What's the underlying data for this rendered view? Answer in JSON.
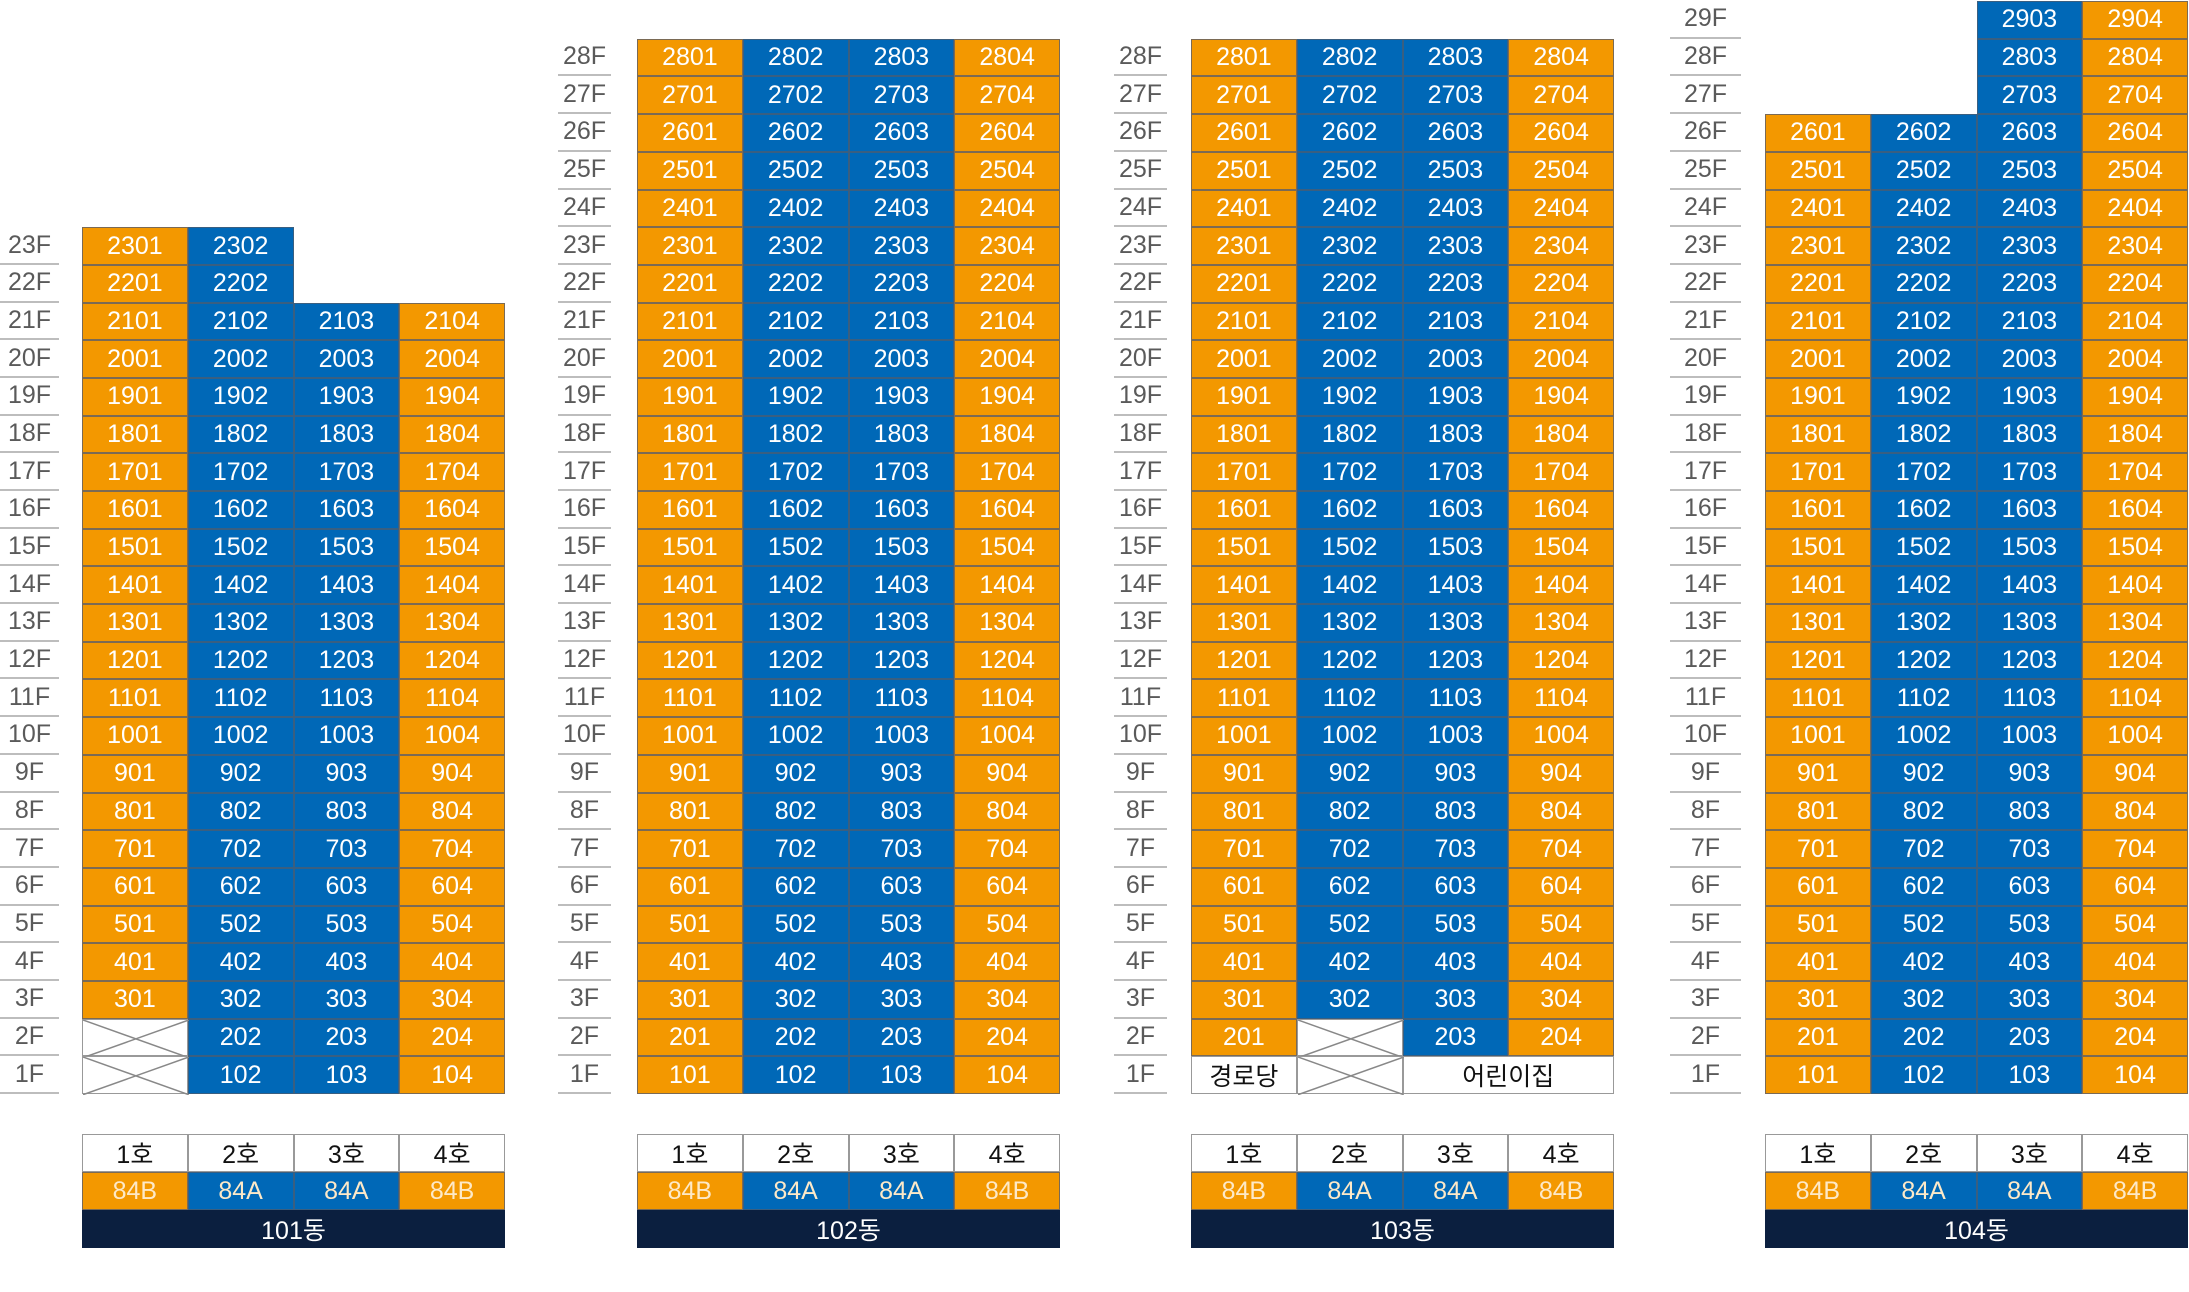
{
  "colors": {
    "orange": "#f39800",
    "blue": "#0068b7",
    "navy": "#0b1f3f"
  },
  "column_types": [
    "o",
    "b",
    "b",
    "o"
  ],
  "legend_units": [
    "1호",
    "2호",
    "3호",
    "4호"
  ],
  "legend_types": [
    "84B",
    "84A",
    "84A",
    "84B"
  ],
  "buildings": [
    {
      "name": "101동",
      "floors": [
        {
          "label": "23F",
          "units": [
            "2301",
            "2302",
            null,
            null
          ]
        },
        {
          "label": "22F",
          "units": [
            "2201",
            "2202",
            null,
            null
          ]
        },
        {
          "label": "21F",
          "units": [
            "2101",
            "2102",
            "2103",
            "2104"
          ]
        },
        {
          "label": "20F",
          "units": [
            "2001",
            "2002",
            "2003",
            "2004"
          ]
        },
        {
          "label": "19F",
          "units": [
            "1901",
            "1902",
            "1903",
            "1904"
          ]
        },
        {
          "label": "18F",
          "units": [
            "1801",
            "1802",
            "1803",
            "1804"
          ]
        },
        {
          "label": "17F",
          "units": [
            "1701",
            "1702",
            "1703",
            "1704"
          ]
        },
        {
          "label": "16F",
          "units": [
            "1601",
            "1602",
            "1603",
            "1604"
          ]
        },
        {
          "label": "15F",
          "units": [
            "1501",
            "1502",
            "1503",
            "1504"
          ]
        },
        {
          "label": "14F",
          "units": [
            "1401",
            "1402",
            "1403",
            "1404"
          ]
        },
        {
          "label": "13F",
          "units": [
            "1301",
            "1302",
            "1303",
            "1304"
          ]
        },
        {
          "label": "12F",
          "units": [
            "1201",
            "1202",
            "1203",
            "1204"
          ]
        },
        {
          "label": "11F",
          "units": [
            "1101",
            "1102",
            "1103",
            "1104"
          ]
        },
        {
          "label": "10F",
          "units": [
            "1001",
            "1002",
            "1003",
            "1004"
          ]
        },
        {
          "label": "9F",
          "units": [
            "901",
            "902",
            "903",
            "904"
          ]
        },
        {
          "label": "8F",
          "units": [
            "801",
            "802",
            "803",
            "804"
          ]
        },
        {
          "label": "7F",
          "units": [
            "701",
            "702",
            "703",
            "704"
          ]
        },
        {
          "label": "6F",
          "units": [
            "601",
            "602",
            "603",
            "604"
          ]
        },
        {
          "label": "5F",
          "units": [
            "501",
            "502",
            "503",
            "504"
          ]
        },
        {
          "label": "4F",
          "units": [
            "401",
            "402",
            "403",
            "404"
          ]
        },
        {
          "label": "3F",
          "units": [
            "301",
            "302",
            "303",
            "304"
          ]
        },
        {
          "label": "2F",
          "units": [
            "X",
            "202",
            "203",
            "204"
          ]
        },
        {
          "label": "1F",
          "units": [
            "X",
            "102",
            "103",
            "104"
          ]
        }
      ]
    },
    {
      "name": "102동",
      "floors": [
        {
          "label": "28F",
          "units": [
            "2801",
            "2802",
            "2803",
            "2804"
          ]
        },
        {
          "label": "27F",
          "units": [
            "2701",
            "2702",
            "2703",
            "2704"
          ]
        },
        {
          "label": "26F",
          "units": [
            "2601",
            "2602",
            "2603",
            "2604"
          ]
        },
        {
          "label": "25F",
          "units": [
            "2501",
            "2502",
            "2503",
            "2504"
          ]
        },
        {
          "label": "24F",
          "units": [
            "2401",
            "2402",
            "2403",
            "2404"
          ]
        },
        {
          "label": "23F",
          "units": [
            "2301",
            "2302",
            "2303",
            "2304"
          ]
        },
        {
          "label": "22F",
          "units": [
            "2201",
            "2202",
            "2203",
            "2204"
          ]
        },
        {
          "label": "21F",
          "units": [
            "2101",
            "2102",
            "2103",
            "2104"
          ]
        },
        {
          "label": "20F",
          "units": [
            "2001",
            "2002",
            "2003",
            "2004"
          ]
        },
        {
          "label": "19F",
          "units": [
            "1901",
            "1902",
            "1903",
            "1904"
          ]
        },
        {
          "label": "18F",
          "units": [
            "1801",
            "1802",
            "1803",
            "1804"
          ]
        },
        {
          "label": "17F",
          "units": [
            "1701",
            "1702",
            "1703",
            "1704"
          ]
        },
        {
          "label": "16F",
          "units": [
            "1601",
            "1602",
            "1603",
            "1604"
          ]
        },
        {
          "label": "15F",
          "units": [
            "1501",
            "1502",
            "1503",
            "1504"
          ]
        },
        {
          "label": "14F",
          "units": [
            "1401",
            "1402",
            "1403",
            "1404"
          ]
        },
        {
          "label": "13F",
          "units": [
            "1301",
            "1302",
            "1303",
            "1304"
          ]
        },
        {
          "label": "12F",
          "units": [
            "1201",
            "1202",
            "1203",
            "1204"
          ]
        },
        {
          "label": "11F",
          "units": [
            "1101",
            "1102",
            "1103",
            "1104"
          ]
        },
        {
          "label": "10F",
          "units": [
            "1001",
            "1002",
            "1003",
            "1004"
          ]
        },
        {
          "label": "9F",
          "units": [
            "901",
            "902",
            "903",
            "904"
          ]
        },
        {
          "label": "8F",
          "units": [
            "801",
            "802",
            "803",
            "804"
          ]
        },
        {
          "label": "7F",
          "units": [
            "701",
            "702",
            "703",
            "704"
          ]
        },
        {
          "label": "6F",
          "units": [
            "601",
            "602",
            "603",
            "604"
          ]
        },
        {
          "label": "5F",
          "units": [
            "501",
            "502",
            "503",
            "504"
          ]
        },
        {
          "label": "4F",
          "units": [
            "401",
            "402",
            "403",
            "404"
          ]
        },
        {
          "label": "3F",
          "units": [
            "301",
            "302",
            "303",
            "304"
          ]
        },
        {
          "label": "2F",
          "units": [
            "201",
            "202",
            "203",
            "204"
          ]
        },
        {
          "label": "1F",
          "units": [
            "101",
            "102",
            "103",
            "104"
          ]
        }
      ]
    },
    {
      "name": "103동",
      "floors": [
        {
          "label": "28F",
          "units": [
            "2801",
            "2802",
            "2803",
            "2804"
          ]
        },
        {
          "label": "27F",
          "units": [
            "2701",
            "2702",
            "2703",
            "2704"
          ]
        },
        {
          "label": "26F",
          "units": [
            "2601",
            "2602",
            "2603",
            "2604"
          ]
        },
        {
          "label": "25F",
          "units": [
            "2501",
            "2502",
            "2503",
            "2504"
          ]
        },
        {
          "label": "24F",
          "units": [
            "2401",
            "2402",
            "2403",
            "2404"
          ]
        },
        {
          "label": "23F",
          "units": [
            "2301",
            "2302",
            "2303",
            "2304"
          ]
        },
        {
          "label": "22F",
          "units": [
            "2201",
            "2202",
            "2203",
            "2204"
          ]
        },
        {
          "label": "21F",
          "units": [
            "2101",
            "2102",
            "2103",
            "2104"
          ]
        },
        {
          "label": "20F",
          "units": [
            "2001",
            "2002",
            "2003",
            "2004"
          ]
        },
        {
          "label": "19F",
          "units": [
            "1901",
            "1902",
            "1903",
            "1904"
          ]
        },
        {
          "label": "18F",
          "units": [
            "1801",
            "1802",
            "1803",
            "1804"
          ]
        },
        {
          "label": "17F",
          "units": [
            "1701",
            "1702",
            "1703",
            "1704"
          ]
        },
        {
          "label": "16F",
          "units": [
            "1601",
            "1602",
            "1603",
            "1604"
          ]
        },
        {
          "label": "15F",
          "units": [
            "1501",
            "1502",
            "1503",
            "1504"
          ]
        },
        {
          "label": "14F",
          "units": [
            "1401",
            "1402",
            "1403",
            "1404"
          ]
        },
        {
          "label": "13F",
          "units": [
            "1301",
            "1302",
            "1303",
            "1304"
          ]
        },
        {
          "label": "12F",
          "units": [
            "1201",
            "1202",
            "1203",
            "1204"
          ]
        },
        {
          "label": "11F",
          "units": [
            "1101",
            "1102",
            "1103",
            "1104"
          ]
        },
        {
          "label": "10F",
          "units": [
            "1001",
            "1002",
            "1003",
            "1004"
          ]
        },
        {
          "label": "9F",
          "units": [
            "901",
            "902",
            "903",
            "904"
          ]
        },
        {
          "label": "8F",
          "units": [
            "801",
            "802",
            "803",
            "804"
          ]
        },
        {
          "label": "7F",
          "units": [
            "701",
            "702",
            "703",
            "704"
          ]
        },
        {
          "label": "6F",
          "units": [
            "601",
            "602",
            "603",
            "604"
          ]
        },
        {
          "label": "5F",
          "units": [
            "501",
            "502",
            "503",
            "504"
          ]
        },
        {
          "label": "4F",
          "units": [
            "401",
            "402",
            "403",
            "404"
          ]
        },
        {
          "label": "3F",
          "units": [
            "301",
            "302",
            "303",
            "304"
          ]
        },
        {
          "label": "2F",
          "units": [
            "201",
            "X",
            "203",
            "204"
          ]
        },
        {
          "label": "1F",
          "units": [
            "경로당",
            "X",
            "어린이집"
          ],
          "facility": true
        }
      ]
    },
    {
      "name": "104동",
      "floors": [
        {
          "label": "29F",
          "units": [
            null,
            null,
            "2903",
            "2904"
          ]
        },
        {
          "label": "28F",
          "units": [
            null,
            null,
            "2803",
            "2804"
          ]
        },
        {
          "label": "27F",
          "units": [
            null,
            null,
            "2703",
            "2704"
          ]
        },
        {
          "label": "26F",
          "units": [
            "2601",
            "2602",
            "2603",
            "2604"
          ]
        },
        {
          "label": "25F",
          "units": [
            "2501",
            "2502",
            "2503",
            "2504"
          ]
        },
        {
          "label": "24F",
          "units": [
            "2401",
            "2402",
            "2403",
            "2404"
          ]
        },
        {
          "label": "23F",
          "units": [
            "2301",
            "2302",
            "2303",
            "2304"
          ]
        },
        {
          "label": "22F",
          "units": [
            "2201",
            "2202",
            "2203",
            "2204"
          ]
        },
        {
          "label": "21F",
          "units": [
            "2101",
            "2102",
            "2103",
            "2104"
          ]
        },
        {
          "label": "20F",
          "units": [
            "2001",
            "2002",
            "2003",
            "2004"
          ]
        },
        {
          "label": "19F",
          "units": [
            "1901",
            "1902",
            "1903",
            "1904"
          ]
        },
        {
          "label": "18F",
          "units": [
            "1801",
            "1802",
            "1803",
            "1804"
          ]
        },
        {
          "label": "17F",
          "units": [
            "1701",
            "1702",
            "1703",
            "1704"
          ]
        },
        {
          "label": "16F",
          "units": [
            "1601",
            "1602",
            "1603",
            "1604"
          ]
        },
        {
          "label": "15F",
          "units": [
            "1501",
            "1502",
            "1503",
            "1504"
          ]
        },
        {
          "label": "14F",
          "units": [
            "1401",
            "1402",
            "1403",
            "1404"
          ]
        },
        {
          "label": "13F",
          "units": [
            "1301",
            "1302",
            "1303",
            "1304"
          ]
        },
        {
          "label": "12F",
          "units": [
            "1201",
            "1202",
            "1203",
            "1204"
          ]
        },
        {
          "label": "11F",
          "units": [
            "1101",
            "1102",
            "1103",
            "1104"
          ]
        },
        {
          "label": "10F",
          "units": [
            "1001",
            "1002",
            "1003",
            "1004"
          ]
        },
        {
          "label": "9F",
          "units": [
            "901",
            "902",
            "903",
            "904"
          ]
        },
        {
          "label": "8F",
          "units": [
            "801",
            "802",
            "803",
            "804"
          ]
        },
        {
          "label": "7F",
          "units": [
            "701",
            "702",
            "703",
            "704"
          ]
        },
        {
          "label": "6F",
          "units": [
            "601",
            "602",
            "603",
            "604"
          ]
        },
        {
          "label": "5F",
          "units": [
            "501",
            "502",
            "503",
            "504"
          ]
        },
        {
          "label": "4F",
          "units": [
            "401",
            "402",
            "403",
            "404"
          ]
        },
        {
          "label": "3F",
          "units": [
            "301",
            "302",
            "303",
            "304"
          ]
        },
        {
          "label": "2F",
          "units": [
            "201",
            "202",
            "203",
            "204"
          ]
        },
        {
          "label": "1F",
          "units": [
            "101",
            "102",
            "103",
            "104"
          ]
        }
      ]
    }
  ]
}
